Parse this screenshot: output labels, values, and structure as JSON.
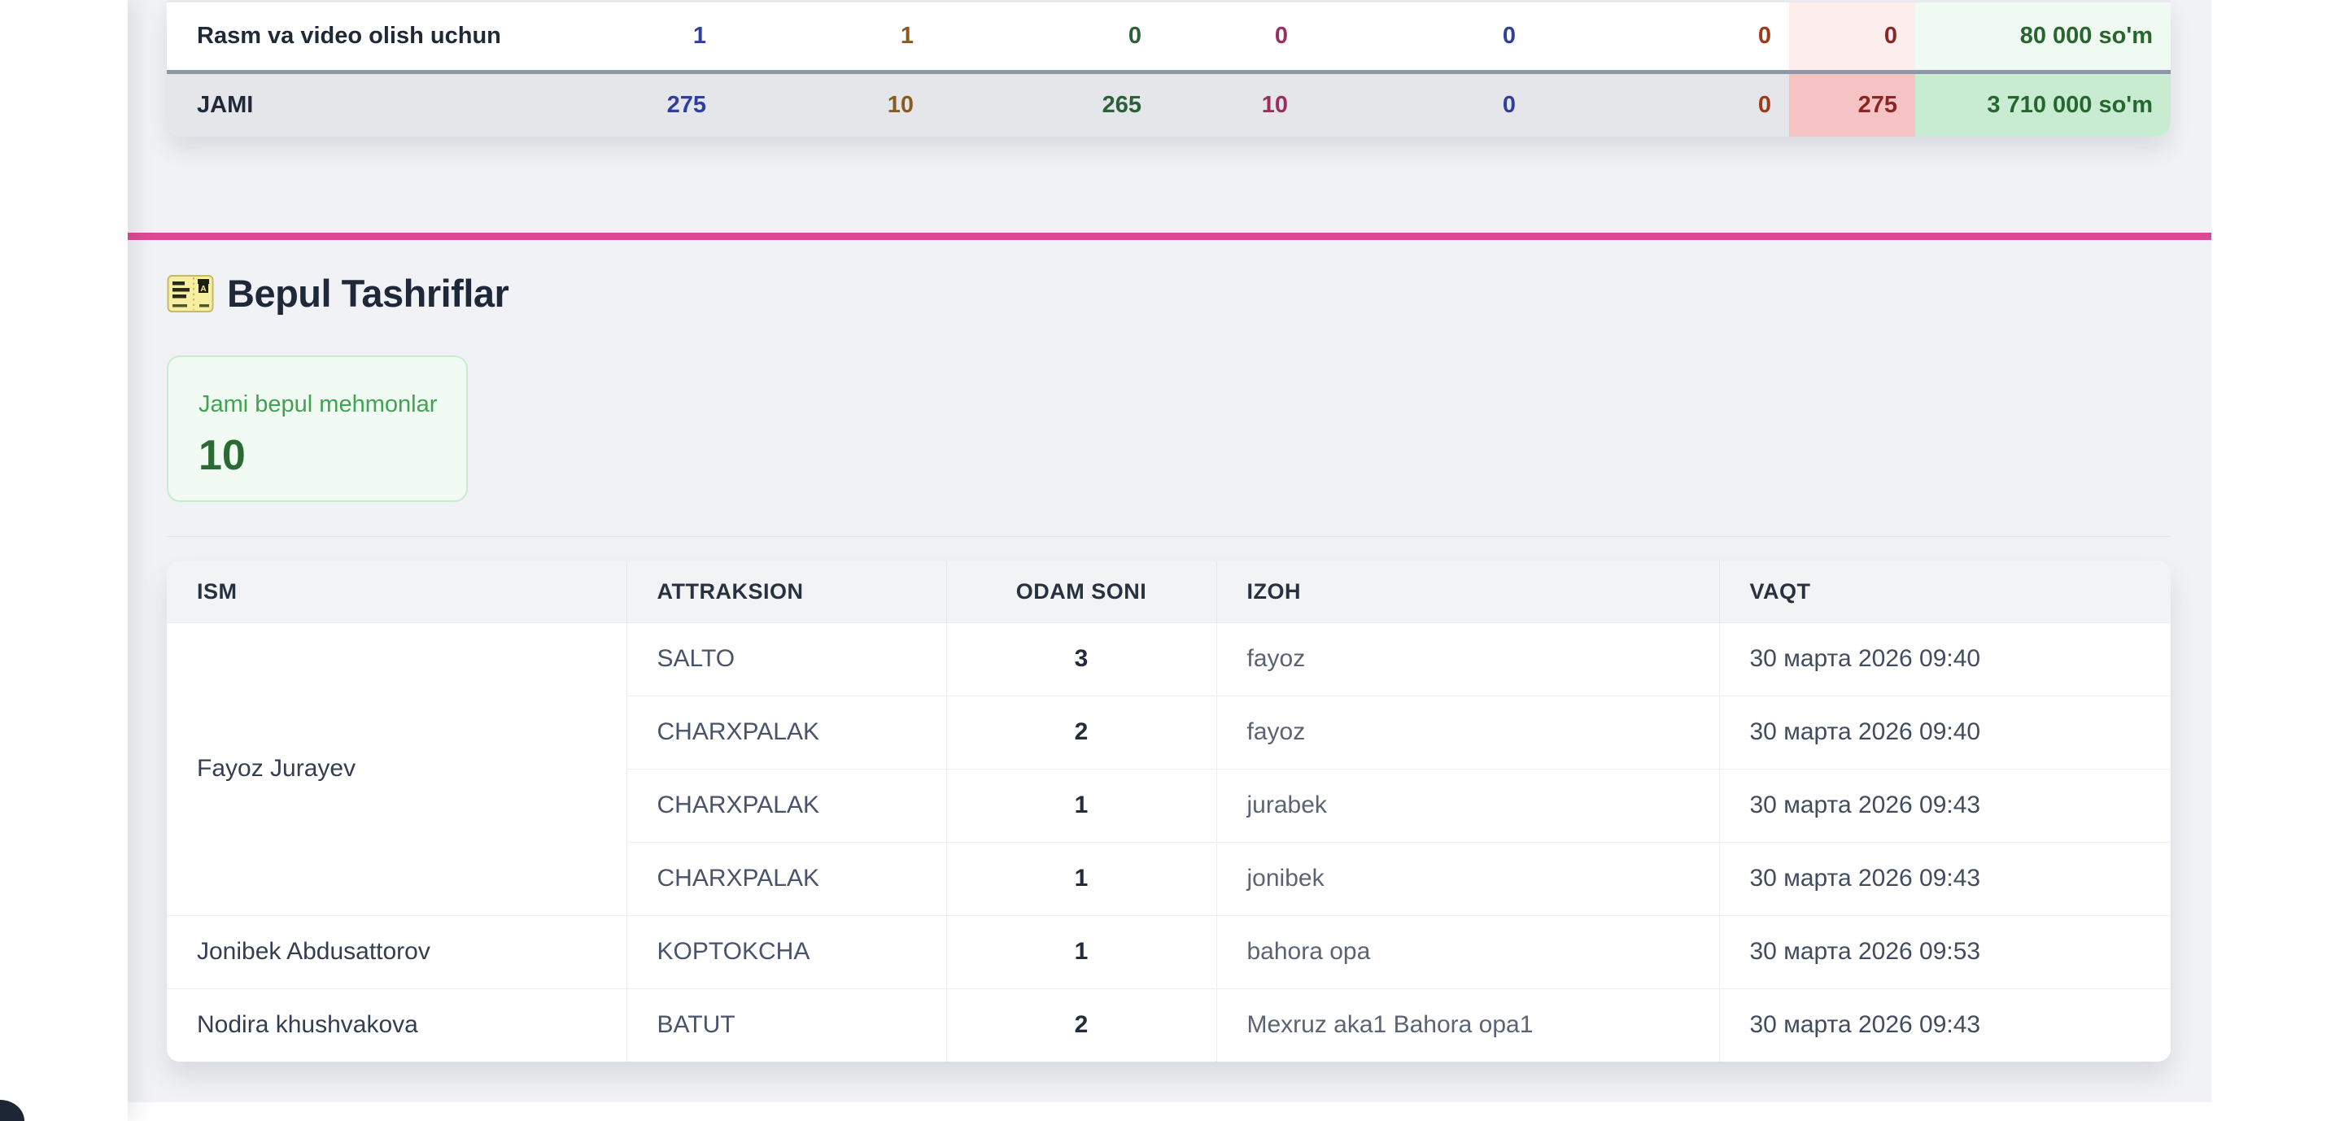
{
  "colors": {
    "accent_pink": "#df4795",
    "panel_bg": "#f1f2f5",
    "free_card_bg": "#f1fbf4",
    "free_card_border": "#c9ecce",
    "free_label_green": "#3fa351",
    "free_value_green": "#2b6a33"
  },
  "summary_table": {
    "value_colors": [
      "#2f3f9f",
      "#8a5a1e",
      "#2b6139",
      "#9c2e5d",
      "#2f3f9f",
      "#a03a12"
    ],
    "pink_text": "#8c2626",
    "pink_bg": "#fdeeee",
    "pink_bg_total": "#f5c3c3",
    "total_text": "#27662f",
    "total_bg": "#effaf2",
    "total_bg_total": "#c7ecd2",
    "rows": [
      {
        "label": "Rasm va video olish uchun",
        "values": [
          "1",
          "1",
          "0",
          "0",
          "0",
          "0"
        ],
        "pink": "0",
        "total": "80 000 so'm"
      },
      {
        "label": "JAMI",
        "values": [
          "275",
          "10",
          "265",
          "10",
          "0",
          "0"
        ],
        "pink": "275",
        "total": "3 710 000 so'm"
      }
    ]
  },
  "section": {
    "icon": "ticket-icon",
    "title": "Bepul Tashriflar"
  },
  "free_guests_card": {
    "label": "Jami bepul mehmonlar",
    "value": "10"
  },
  "visits_table": {
    "columns": [
      "ISM",
      "ATTRAKSION",
      "ODAM SONI",
      "IZOH",
      "VAQT"
    ],
    "groups": [
      {
        "name": "Fayoz Jurayev",
        "entries": [
          {
            "attraction": "SALTO",
            "count": "3",
            "note": "fayoz",
            "time": "30 марта 2026 09:40"
          },
          {
            "attraction": "CHARXPALAK",
            "count": "2",
            "note": "fayoz",
            "time": "30 марта 2026 09:40"
          },
          {
            "attraction": "CHARXPALAK",
            "count": "1",
            "note": "jurabek",
            "time": "30 марта 2026 09:43"
          },
          {
            "attraction": "CHARXPALAK",
            "count": "1",
            "note": "jonibek",
            "time": "30 марта 2026 09:43"
          }
        ]
      },
      {
        "name": "Jonibek Abdusattorov",
        "entries": [
          {
            "attraction": "KOPTOKCHA",
            "count": "1",
            "note": "bahora opa",
            "time": "30 марта 2026 09:53"
          }
        ]
      },
      {
        "name": "Nodira khushvakova",
        "entries": [
          {
            "attraction": "BATUT",
            "count": "2",
            "note": "Mexruz aka1 Bahora opa1",
            "time": "30 марта 2026 09:43"
          }
        ]
      }
    ]
  }
}
